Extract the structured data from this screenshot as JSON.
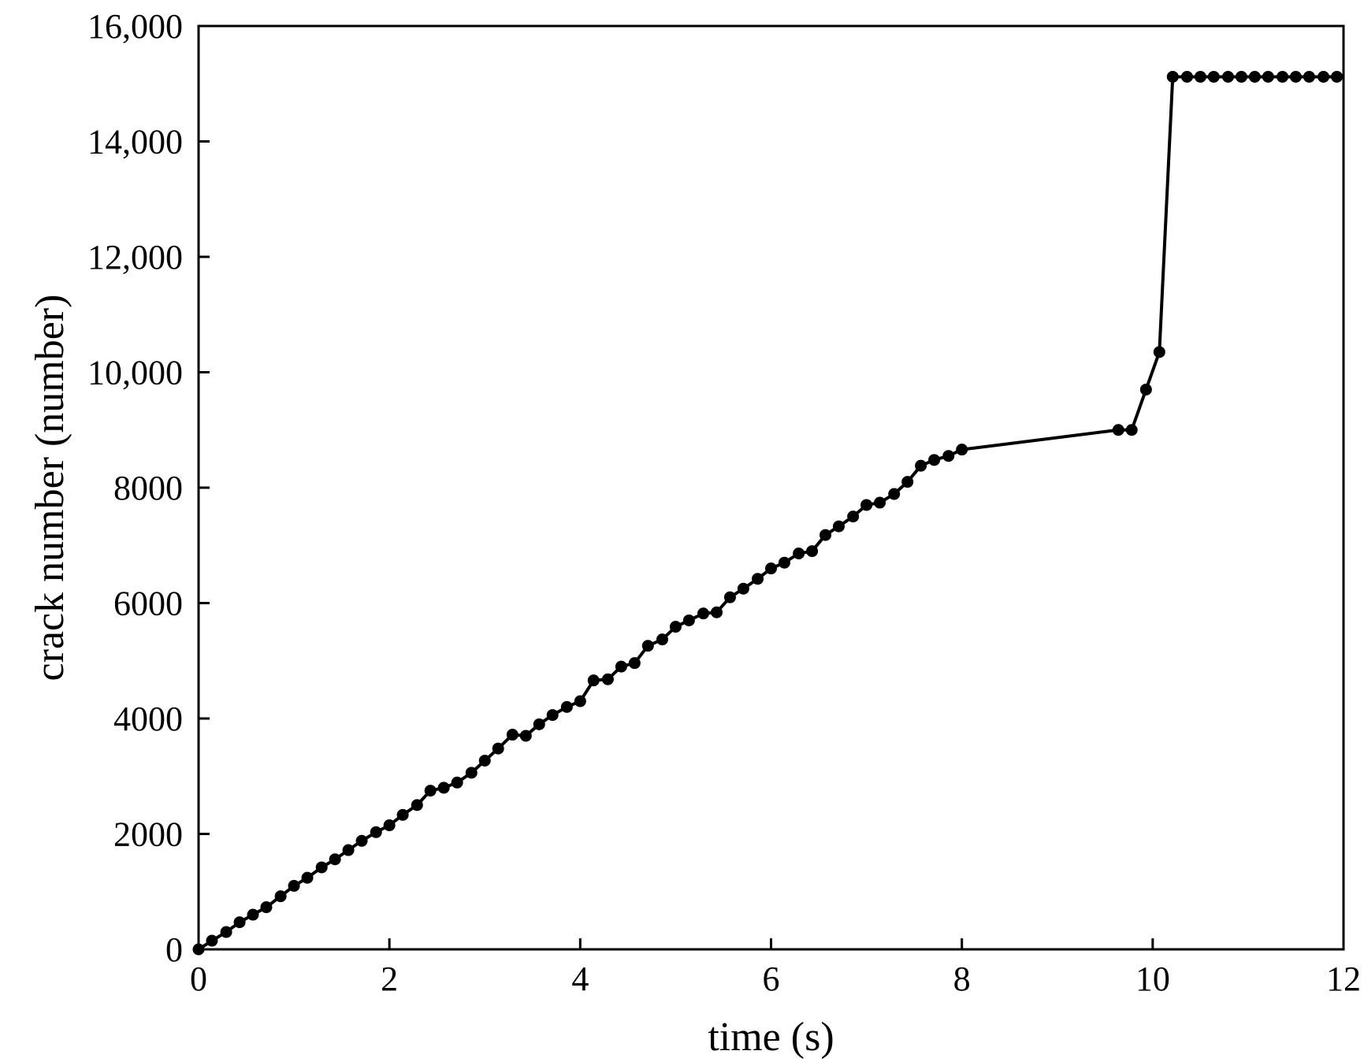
{
  "chart_data": {
    "type": "line",
    "title": "",
    "xlabel": "time (s)",
    "ylabel": "crack number (number)",
    "xlim": [
      0,
      12
    ],
    "ylim": [
      0,
      16000
    ],
    "xticks": [
      0,
      2,
      4,
      6,
      8,
      10,
      12
    ],
    "yticks": [
      0,
      2000,
      4000,
      6000,
      8000,
      10000,
      12000,
      14000,
      16000
    ],
    "xtick_labels": [
      "0",
      "2",
      "4",
      "6",
      "8",
      "10",
      "12"
    ],
    "ytick_labels": [
      "0",
      "2000",
      "4000",
      "6000",
      "8000",
      "10,000",
      "12,000",
      "14,000",
      "16,000"
    ],
    "grid": false,
    "legend": false,
    "series_color": "#000000",
    "series": [
      {
        "marker": "circle",
        "x": [
          0,
          0.14,
          0.29,
          0.43,
          0.57,
          0.71,
          0.86,
          1.0,
          1.14,
          1.29,
          1.43,
          1.57,
          1.71,
          1.86,
          2.0,
          2.14,
          2.29,
          2.43,
          2.57,
          2.71,
          2.86,
          3.0,
          3.14,
          3.29,
          3.43,
          3.57,
          3.71,
          3.86,
          4.0,
          4.14,
          4.29,
          4.43,
          4.57,
          4.71,
          4.86,
          5.0,
          5.14,
          5.29,
          5.43,
          5.57,
          5.71,
          5.86,
          6.0,
          6.14,
          6.29,
          6.43,
          6.57,
          6.71,
          6.86,
          7.0,
          7.14,
          7.29,
          7.43,
          7.57,
          7.71,
          7.86,
          8.0,
          9.64,
          9.78,
          9.93,
          10.07,
          10.21,
          10.36,
          10.5,
          10.64,
          10.79,
          10.93,
          11.07,
          11.21,
          11.36,
          11.5,
          11.64,
          11.79,
          11.93
        ],
        "y": [
          0,
          150,
          300,
          470,
          600,
          730,
          920,
          1100,
          1240,
          1420,
          1560,
          1720,
          1880,
          2030,
          2150,
          2330,
          2500,
          2750,
          2800,
          2890,
          3060,
          3270,
          3480,
          3720,
          3700,
          3900,
          4060,
          4200,
          4300,
          4660,
          4680,
          4900,
          4960,
          5260,
          5370,
          5590,
          5700,
          5820,
          5840,
          6100,
          6250,
          6420,
          6600,
          6700,
          6860,
          6900,
          7180,
          7330,
          7500,
          7700,
          7740,
          7890,
          8100,
          8380,
          8480,
          8550,
          8660,
          9000,
          9000,
          9700,
          10350,
          15120,
          15120,
          15120,
          15120,
          15120,
          15120,
          15120,
          15120,
          15120,
          15120,
          15120,
          15120,
          15120
        ]
      }
    ]
  }
}
